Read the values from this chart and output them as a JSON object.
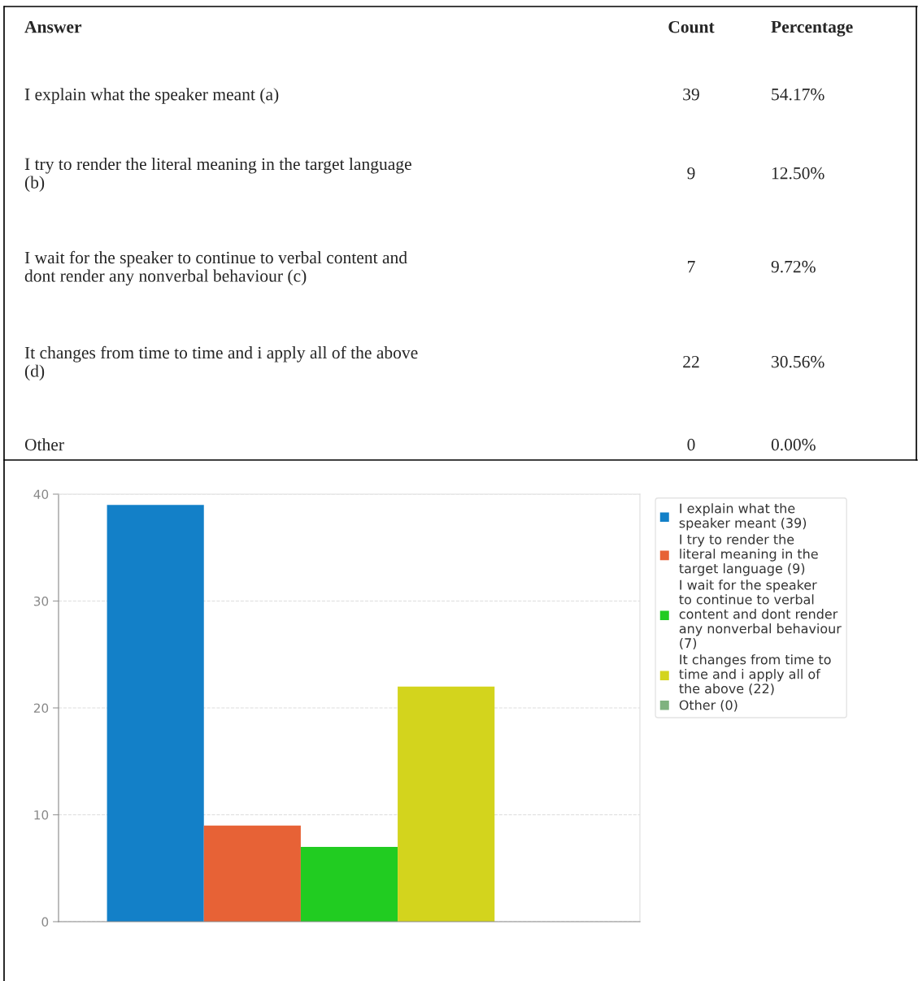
{
  "chart_data": [
    {
      "type": "other",
      "annotations": [
        "Answer",
        "Count",
        "Percentage",
        "I explain what the speaker meant (a)",
        "39",
        "54.17%",
        "I try to render the literal meaning in the target language (b)",
        "9",
        "12.50%",
        "I wait for the speaker to continue to verbal content and dont render any nonverbal behaviour (c)",
        "7",
        "9.72%",
        "It changes from time to time and i apply all of the above (d)",
        "22",
        "30.56%",
        "Other",
        "0",
        "0.00%"
      ]
    },
    {
      "type": "bar",
      "categories": [
        null,
        null,
        null,
        null,
        null
      ],
      "series": [
        {
          "name": "I explain what the speaker meant (39)",
          "color": "#1380c8",
          "values": [
            39,
            null,
            null,
            null,
            null
          ]
        },
        {
          "name": "I try to render the literal meaning in the target language (9)",
          "color": "#e76236",
          "values": [
            null,
            9,
            null,
            null,
            null
          ]
        },
        {
          "name": "I wait for the speaker to continue to verbal content and dont render any nonverbal behaviour (7)",
          "color": "#21cc21",
          "values": [
            null,
            null,
            7,
            null,
            null
          ]
        },
        {
          "name": "It changes from time to time and i apply all of the above (22)",
          "color": "#d3d41d",
          "values": [
            null,
            null,
            null,
            22,
            null
          ]
        },
        {
          "name": "Other (0)",
          "color": "#7fb27f",
          "values": [
            null,
            null,
            null,
            null,
            0
          ]
        }
      ],
      "ylim": [
        0,
        40
      ],
      "yticks": [
        0,
        10,
        20,
        30,
        40
      ],
      "grid": "y",
      "legend": "right",
      "tick_labels": "y"
    }
  ]
}
